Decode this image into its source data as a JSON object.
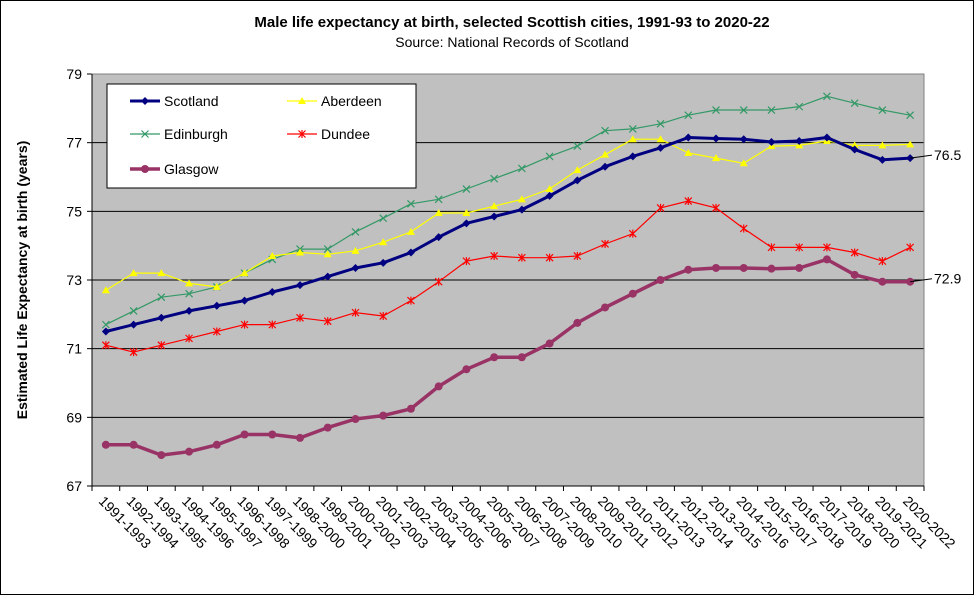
{
  "chart_data": {
    "type": "line",
    "title": "Male life expectancy at birth, selected Scottish cities, 1991-93 to 2020-22",
    "subtitle": "Source: National Records of Scotland",
    "xlabel": "",
    "ylabel": "Estimated Life Expectancy at birth (years)",
    "ylim": [
      67,
      79
    ],
    "yticks": [
      67,
      69,
      71,
      73,
      75,
      77,
      79
    ],
    "grid": true,
    "legend_position": "top-left",
    "categories": [
      "1991-1993",
      "1992-1994",
      "1993-1995",
      "1994-1996",
      "1995-1997",
      "1996-1998",
      "1997-1999",
      "1998-2000",
      "1999-2001",
      "2000-2002",
      "2001-2003",
      "2002-2004",
      "2003-2005",
      "2004-2006",
      "2005-2007",
      "2006-2008",
      "2007-2009",
      "2008-2010",
      "2009-2011",
      "2010-2012",
      "2011-2013",
      "2012-2014",
      "2013-2015",
      "2014-2016",
      "2015-2017",
      "2016-2018",
      "2017-2019",
      "2018-2020",
      "2019-2021",
      "2020-2022"
    ],
    "series": [
      {
        "name": "Scotland",
        "color": "#000080",
        "marker": "diamond",
        "values": [
          71.5,
          71.7,
          71.9,
          72.1,
          72.25,
          72.4,
          72.65,
          72.85,
          73.1,
          73.35,
          73.5,
          73.8,
          74.25,
          74.65,
          74.85,
          75.05,
          75.45,
          75.9,
          76.3,
          76.6,
          76.85,
          77.15,
          77.12,
          77.1,
          77.02,
          77.05,
          77.15,
          76.8,
          76.5,
          76.55
        ]
      },
      {
        "name": "Aberdeen",
        "color": "#ffff00",
        "marker": "triangle",
        "values": [
          72.7,
          73.2,
          73.2,
          72.9,
          72.8,
          73.2,
          73.7,
          73.8,
          73.75,
          73.85,
          74.1,
          74.4,
          74.95,
          74.95,
          75.15,
          75.35,
          75.65,
          76.2,
          76.65,
          77.1,
          77.1,
          76.7,
          76.55,
          76.4,
          76.9,
          76.92,
          77.05,
          76.92,
          76.92,
          76.95
        ]
      },
      {
        "name": "Edinburgh",
        "color": "#339966",
        "marker": "x",
        "values": [
          71.7,
          72.1,
          72.5,
          72.6,
          72.8,
          73.2,
          73.6,
          73.9,
          73.9,
          74.4,
          74.8,
          75.22,
          75.35,
          75.65,
          75.95,
          76.25,
          76.6,
          76.9,
          77.35,
          77.4,
          77.55,
          77.8,
          77.95,
          77.95,
          77.95,
          78.05,
          78.35,
          78.15,
          77.95,
          77.8
        ]
      },
      {
        "name": "Dundee",
        "color": "#ff0000",
        "marker": "star",
        "values": [
          71.1,
          70.9,
          71.1,
          71.3,
          71.5,
          71.7,
          71.7,
          71.9,
          71.8,
          72.05,
          71.95,
          72.4,
          72.95,
          73.55,
          73.7,
          73.65,
          73.65,
          73.7,
          74.05,
          74.35,
          75.1,
          75.3,
          75.1,
          74.5,
          73.95,
          73.95,
          73.95,
          73.8,
          73.55,
          73.95
        ]
      },
      {
        "name": "Glasgow",
        "color": "#993366",
        "marker": "circle",
        "values": [
          68.2,
          68.2,
          67.9,
          68.0,
          68.2,
          68.5,
          68.5,
          68.4,
          68.7,
          68.95,
          69.05,
          69.25,
          69.9,
          70.4,
          70.75,
          70.75,
          71.15,
          71.75,
          72.2,
          72.6,
          73.0,
          73.3,
          73.35,
          73.35,
          73.33,
          73.35,
          73.6,
          73.15,
          72.95,
          72.95
        ]
      }
    ],
    "end_labels": [
      {
        "series": "Scotland",
        "text": "76.5"
      },
      {
        "series": "Glasgow",
        "text": "72.9"
      }
    ]
  }
}
